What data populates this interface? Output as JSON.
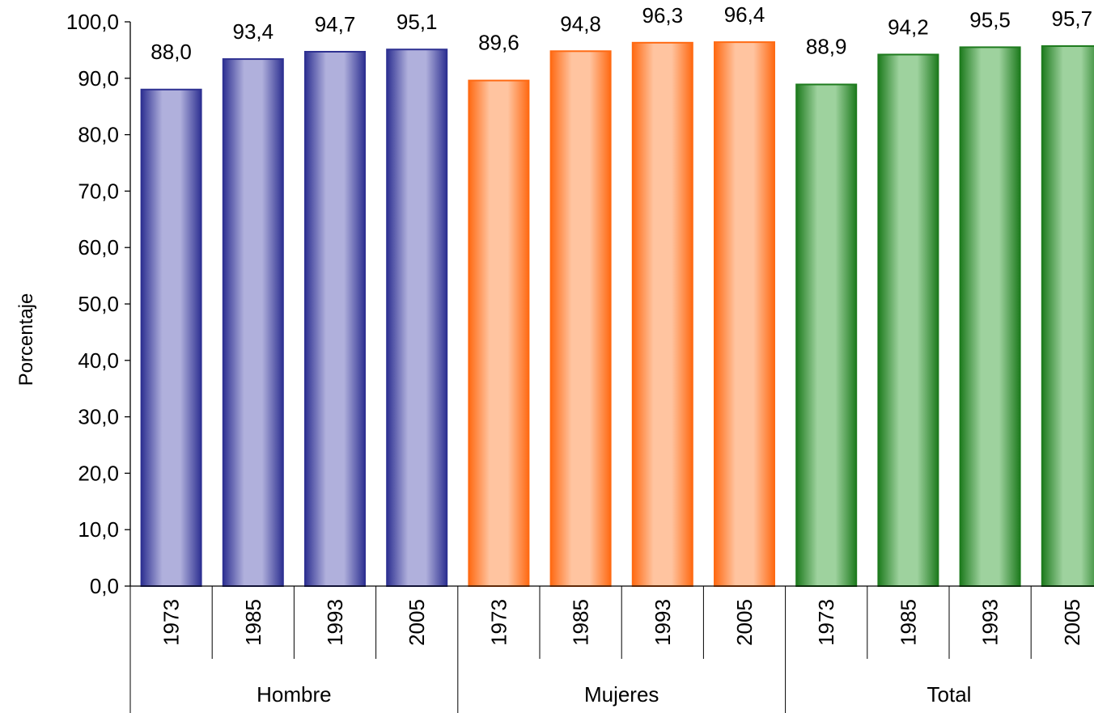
{
  "chart_data": {
    "type": "bar",
    "ylabel": "Porcentaje",
    "ylim": [
      0,
      100
    ],
    "ytick_step": 10,
    "ytick_labels": [
      "0,0",
      "10,0",
      "20,0",
      "30,0",
      "40,0",
      "50,0",
      "60,0",
      "70,0",
      "80,0",
      "90,0",
      "100,0"
    ],
    "grid": false,
    "legend": "none",
    "groups": [
      {
        "name": "Hombre",
        "color": "#2E3192",
        "highlight": "#B0B0DC",
        "bars": [
          {
            "category": "1973",
            "value": 88.0,
            "label": "88,0"
          },
          {
            "category": "1985",
            "value": 93.4,
            "label": "93,4"
          },
          {
            "category": "1993",
            "value": 94.7,
            "label": "94,7"
          },
          {
            "category": "2005",
            "value": 95.1,
            "label": "95,1"
          }
        ]
      },
      {
        "name": "Mujeres",
        "color": "#FF6A13",
        "highlight": "#FFC4A0",
        "bars": [
          {
            "category": "1973",
            "value": 89.6,
            "label": "89,6"
          },
          {
            "category": "1985",
            "value": 94.8,
            "label": "94,8"
          },
          {
            "category": "1993",
            "value": 96.3,
            "label": "96,3"
          },
          {
            "category": "2005",
            "value": 96.4,
            "label": "96,4"
          }
        ]
      },
      {
        "name": "Total",
        "color": "#1E7B1E",
        "highlight": "#9ED29E",
        "bars": [
          {
            "category": "1973",
            "value": 88.9,
            "label": "88,9"
          },
          {
            "category": "1985",
            "value": 94.2,
            "label": "94,2"
          },
          {
            "category": "1993",
            "value": 95.5,
            "label": "95,5"
          },
          {
            "category": "2005",
            "value": 95.7,
            "label": "95,7"
          }
        ]
      }
    ]
  }
}
